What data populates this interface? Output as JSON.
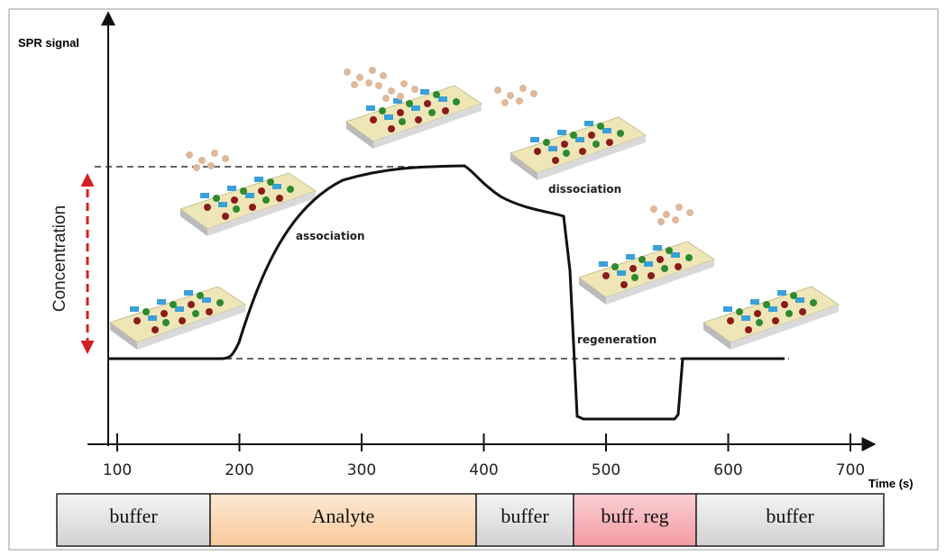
{
  "axis": {
    "y_label": "SPR signal",
    "x_label": "Time (s)",
    "ticks": [
      100,
      200,
      300,
      400,
      500,
      600,
      700
    ]
  },
  "side_label": "Concentration",
  "annotations": {
    "association": "association",
    "dissociation": "dissociation",
    "regeneration": "regeneration"
  },
  "phases": [
    "buffer",
    "Analyte",
    "buffer",
    "buff. reg",
    "buffer"
  ]
}
